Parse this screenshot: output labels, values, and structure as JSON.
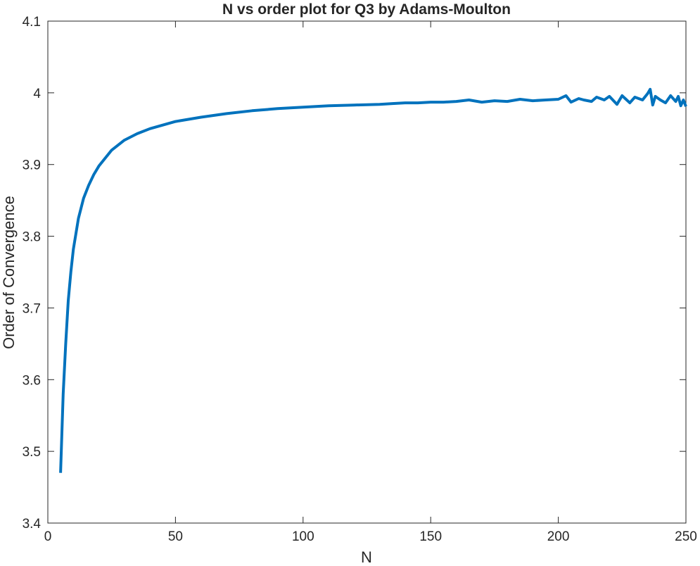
{
  "chart_data": {
    "type": "line",
    "title": "N vs order plot for Q3 by Adams-Moulton",
    "xlabel": "N",
    "ylabel": "Order of Convergence",
    "xlim": [
      0,
      250
    ],
    "ylim": [
      3.4,
      4.1
    ],
    "x_ticks": [
      0,
      50,
      100,
      150,
      200,
      250
    ],
    "y_ticks": [
      3.4,
      3.5,
      3.6,
      3.7,
      3.8,
      3.9,
      4.0,
      4.1
    ],
    "x_tick_labels": [
      "0",
      "50",
      "100",
      "150",
      "200",
      "250"
    ],
    "y_tick_labels": [
      "3.4",
      "3.5",
      "3.6",
      "3.7",
      "3.8",
      "3.9",
      "4",
      "4.1"
    ],
    "grid": false,
    "box": true,
    "series": [
      {
        "color": "#0072BD",
        "x": [
          5,
          6,
          7,
          8,
          9,
          10,
          12,
          14,
          16,
          18,
          20,
          25,
          30,
          35,
          40,
          50,
          60,
          70,
          80,
          90,
          100,
          110,
          120,
          130,
          135,
          140,
          145,
          150,
          155,
          160,
          165,
          170,
          175,
          180,
          185,
          190,
          195,
          200,
          203,
          205,
          208,
          210,
          213,
          215,
          218,
          220,
          223,
          225,
          228,
          230,
          233,
          235,
          236,
          237,
          238,
          240,
          242,
          244,
          246,
          247,
          248,
          249,
          250
        ],
        "y": [
          3.47,
          3.58,
          3.65,
          3.71,
          3.75,
          3.782,
          3.825,
          3.853,
          3.871,
          3.886,
          3.898,
          3.92,
          3.934,
          3.943,
          3.95,
          3.96,
          3.966,
          3.971,
          3.975,
          3.978,
          3.98,
          3.982,
          3.983,
          3.984,
          3.985,
          3.986,
          3.986,
          3.987,
          3.987,
          3.988,
          3.99,
          3.987,
          3.989,
          3.988,
          3.991,
          3.989,
          3.99,
          3.991,
          3.996,
          3.987,
          3.992,
          3.99,
          3.988,
          3.994,
          3.99,
          3.995,
          3.984,
          3.996,
          3.986,
          3.994,
          3.99,
          3.999,
          4.005,
          3.983,
          3.995,
          3.99,
          3.986,
          3.996,
          3.988,
          3.995,
          3.982,
          3.99,
          3.981
        ]
      }
    ]
  }
}
